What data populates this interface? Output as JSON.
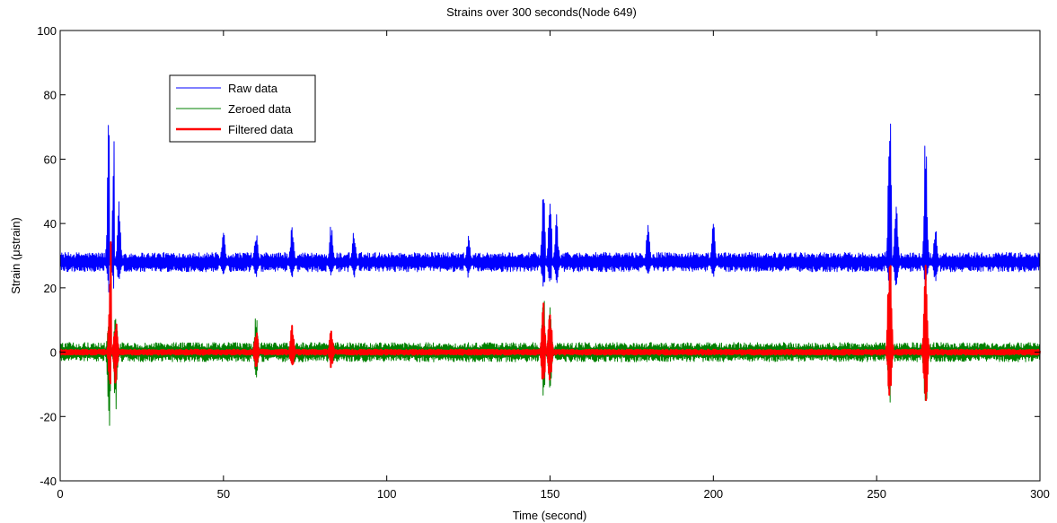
{
  "chart_data": {
    "type": "line",
    "title": "Strains over 300 seconds(Node 649)",
    "xlabel": "Time (second)",
    "ylabel": "Strain (μstrain)",
    "xlim": [
      0,
      300
    ],
    "ylim": [
      -40,
      100
    ],
    "xticks": [
      0,
      50,
      100,
      150,
      200,
      250,
      300
    ],
    "yticks": [
      -40,
      -20,
      0,
      20,
      40,
      60,
      80,
      100
    ],
    "grid": false,
    "legend_position": "top-left",
    "series": [
      {
        "name": "Raw data",
        "color": "#0000ff",
        "baseline": 28,
        "noise_amplitude": 3,
        "events": [
          {
            "t": 15,
            "peak": 80,
            "low": 18
          },
          {
            "t": 16.5,
            "peak": 66,
            "low": 20
          },
          {
            "t": 18,
            "peak": 47,
            "low": 22
          },
          {
            "t": 50,
            "peak": 40,
            "low": 24
          },
          {
            "t": 60,
            "peak": 38,
            "low": 24
          },
          {
            "t": 71,
            "peak": 40,
            "low": 24
          },
          {
            "t": 83,
            "peak": 40,
            "low": 24
          },
          {
            "t": 90,
            "peak": 38,
            "low": 24
          },
          {
            "t": 125,
            "peak": 36,
            "low": 24
          },
          {
            "t": 148,
            "peak": 50,
            "low": 20
          },
          {
            "t": 150,
            "peak": 48,
            "low": 21
          },
          {
            "t": 152,
            "peak": 42,
            "low": 22
          },
          {
            "t": 180,
            "peak": 40,
            "low": 24
          },
          {
            "t": 200,
            "peak": 40,
            "low": 24
          },
          {
            "t": 254,
            "peak": 81,
            "low": 18
          },
          {
            "t": 256,
            "peak": 48,
            "low": 20
          },
          {
            "t": 265,
            "peak": 73,
            "low": 20
          },
          {
            "t": 268,
            "peak": 40,
            "low": 22
          }
        ]
      },
      {
        "name": "Zeroed data",
        "color": "#008000",
        "baseline": 0,
        "noise_amplitude": 3,
        "events": [
          {
            "t": 15,
            "peak": 14,
            "low": -23
          },
          {
            "t": 17,
            "peak": 12,
            "low": -18
          },
          {
            "t": 60,
            "peak": 12,
            "low": -8
          },
          {
            "t": 148,
            "peak": 18,
            "low": -14
          },
          {
            "t": 150,
            "peak": 16,
            "low": -12
          },
          {
            "t": 254,
            "peak": 16,
            "low": -20
          },
          {
            "t": 265,
            "peak": 14,
            "low": -22
          }
        ]
      },
      {
        "name": "Filtered data",
        "color": "#ff0000",
        "baseline": 0,
        "noise_amplitude": 0.8,
        "events": [
          {
            "t": 15.5,
            "peak": 34,
            "low": -18
          },
          {
            "t": 17,
            "peak": 12,
            "low": -10
          },
          {
            "t": 60,
            "peak": 8,
            "low": -5
          },
          {
            "t": 71,
            "peak": 8,
            "low": -5
          },
          {
            "t": 83,
            "peak": 7,
            "low": -5
          },
          {
            "t": 148,
            "peak": 15,
            "low": -13
          },
          {
            "t": 150,
            "peak": 14,
            "low": -10
          },
          {
            "t": 254,
            "peak": 36,
            "low": -18
          },
          {
            "t": 265,
            "peak": 34,
            "low": -20
          }
        ]
      }
    ]
  }
}
